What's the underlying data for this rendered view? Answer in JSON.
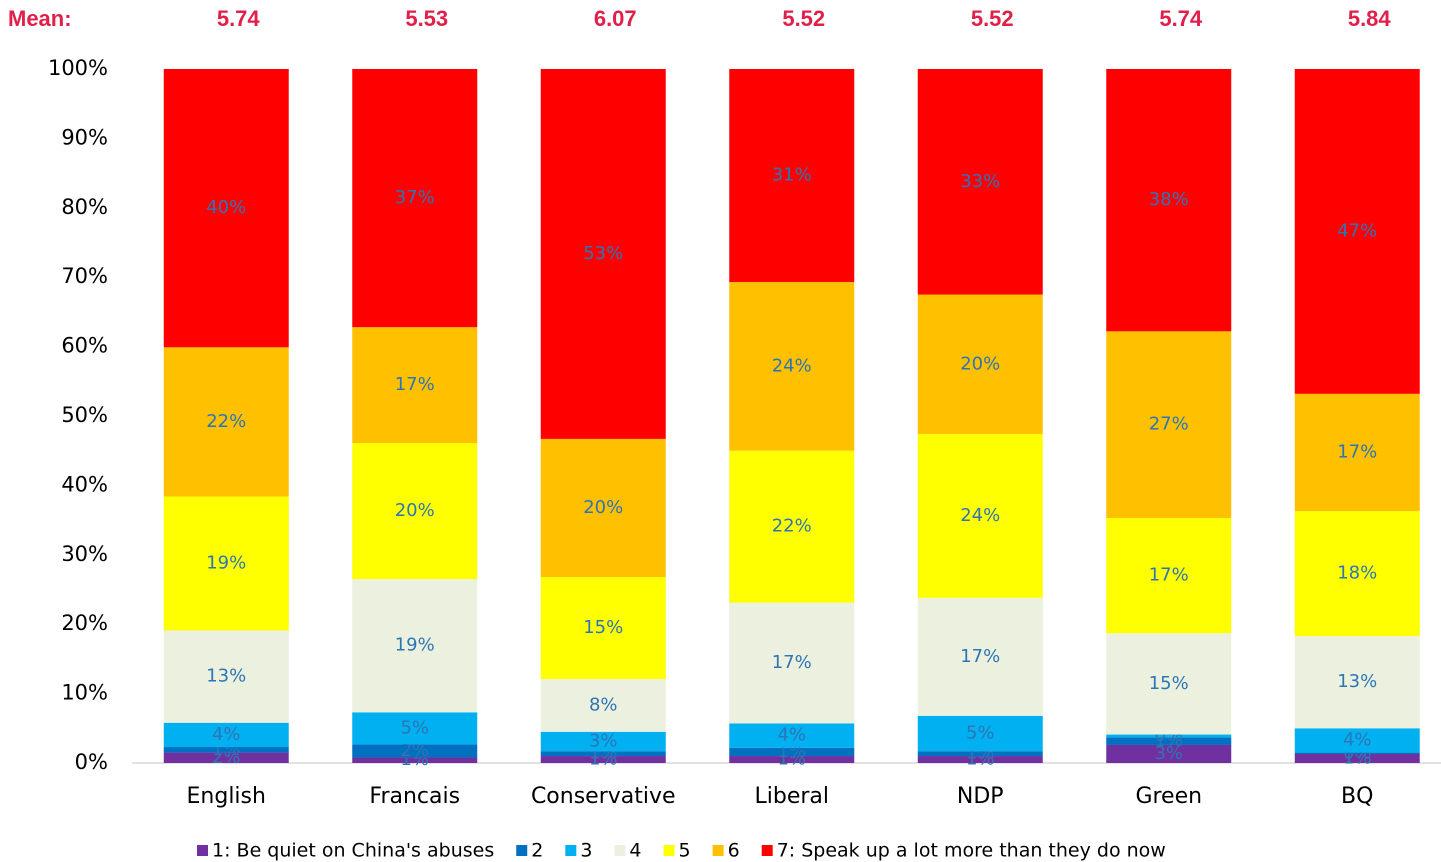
{
  "chart_data": {
    "type": "stacked_bar",
    "mean_label": "Mean:",
    "means": [
      5.74,
      5.53,
      6.07,
      5.52,
      5.52,
      5.74,
      5.84
    ],
    "categories": [
      "English",
      "Francais",
      "Conservative",
      "Liberal",
      "NDP",
      "Green",
      "BQ"
    ],
    "ylim": [
      0,
      100
    ],
    "yticks": [
      {
        "value": 0,
        "label": "0%"
      },
      {
        "value": 10,
        "label": "10%"
      },
      {
        "value": 20,
        "label": "20%"
      },
      {
        "value": 30,
        "label": "30%"
      },
      {
        "value": 40,
        "label": "40%"
      },
      {
        "value": 50,
        "label": "50%"
      },
      {
        "value": 60,
        "label": "60%"
      },
      {
        "value": 70,
        "label": "70%"
      },
      {
        "value": 80,
        "label": "80%"
      },
      {
        "value": 90,
        "label": "90%"
      },
      {
        "value": 100,
        "label": "100%"
      }
    ],
    "legend": "bottom",
    "series": [
      {
        "name": "1: Be quiet on China's abuses",
        "color": "#7030a0",
        "values": [
          1.5,
          0.8,
          1.0,
          1.0,
          1.0,
          2.6,
          1.3
        ],
        "value_labels": [
          "2%",
          "1%",
          "1%",
          "1%",
          "1%",
          "3%",
          "1%"
        ]
      },
      {
        "name": "2",
        "color": "#0070c0",
        "values": [
          0.8,
          1.9,
          0.7,
          1.2,
          0.7,
          1.1,
          0.2
        ],
        "value_labels": [
          "1%",
          "2%",
          "1%",
          "1%",
          "1%",
          "1%",
          "0%"
        ]
      },
      {
        "name": "3",
        "color": "#00b0f0",
        "values": [
          3.5,
          4.6,
          2.8,
          3.5,
          5.1,
          0.4,
          3.5
        ],
        "value_labels": [
          "4%",
          "5%",
          "3%",
          "4%",
          "5%",
          "0%",
          "4%"
        ]
      },
      {
        "name": "4",
        "color": "#ebf1de",
        "values": [
          13.3,
          19.2,
          7.6,
          17.4,
          17.0,
          14.6,
          13.3
        ],
        "value_labels": [
          "13%",
          "19%",
          "8%",
          "17%",
          "17%",
          "15%",
          "13%"
        ]
      },
      {
        "name": "5",
        "color": "#ffff00",
        "values": [
          19.3,
          19.6,
          14.7,
          21.9,
          23.6,
          16.6,
          18.0
        ],
        "value_labels": [
          "19%",
          "20%",
          "15%",
          "22%",
          "24%",
          "17%",
          "18%"
        ]
      },
      {
        "name": "6",
        "color": "#ffc000",
        "values": [
          21.5,
          16.7,
          19.9,
          24.3,
          20.1,
          26.9,
          16.9
        ],
        "value_labels": [
          "22%",
          "17%",
          "20%",
          "24%",
          "20%",
          "27%",
          "17%"
        ]
      },
      {
        "name": "7: Speak up a lot more than they do now",
        "color": "#ff0000",
        "values": [
          40.1,
          37.2,
          53.3,
          30.7,
          32.5,
          37.8,
          46.8
        ],
        "value_labels": [
          "40%",
          "37%",
          "53%",
          "31%",
          "33%",
          "38%",
          "47%"
        ]
      }
    ]
  }
}
